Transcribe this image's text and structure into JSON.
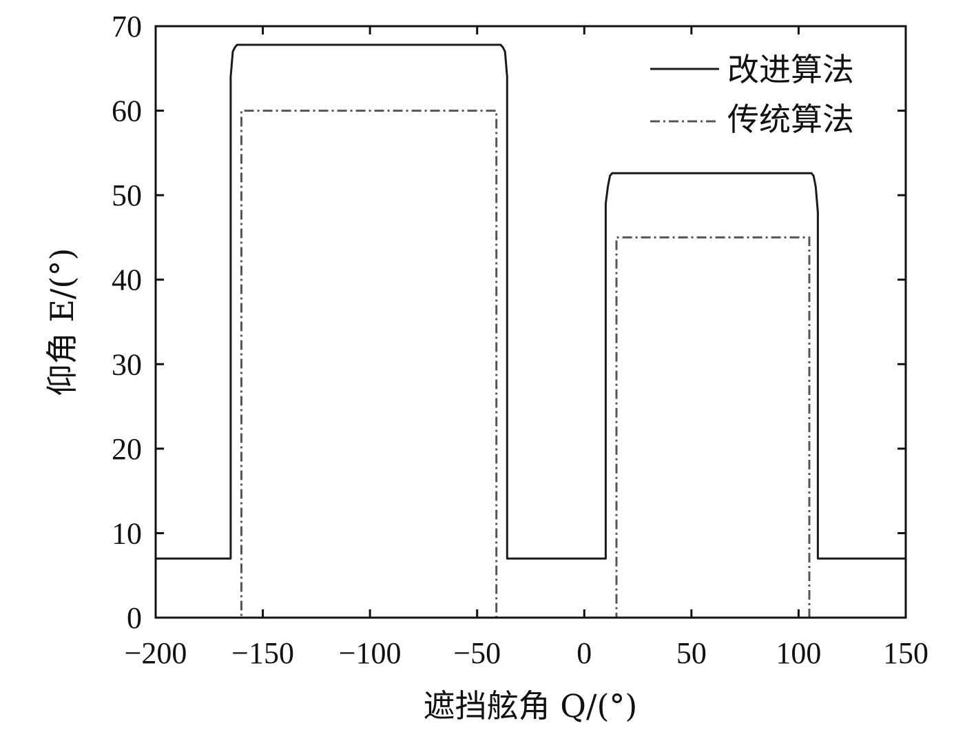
{
  "chart_data": {
    "type": "line",
    "title": "",
    "xlabel": "遮挡舷角 Q/(°)",
    "ylabel": "仰角 E/(°)",
    "xlim": [
      -200,
      150
    ],
    "ylim": [
      0,
      70
    ],
    "xticks": [
      -200,
      -150,
      -100,
      -50,
      0,
      50,
      100,
      150
    ],
    "yticks": [
      0,
      10,
      20,
      30,
      40,
      50,
      60,
      70
    ],
    "xtick_labels": [
      "−200",
      "−150",
      "−100",
      "−50",
      "0",
      "50",
      "100",
      "150"
    ],
    "ytick_labels": [
      "0",
      "10",
      "20",
      "30",
      "40",
      "50",
      "60",
      "70"
    ],
    "grid": false,
    "legend_position": "top-right",
    "series": [
      {
        "name": "改进算法",
        "style": "solid",
        "color": "#1a1a1a",
        "x": [
          -200,
          -165,
          -165,
          -164,
          -163,
          -162,
          -39,
          -38,
          -37,
          -36,
          -36,
          10,
          10,
          11,
          12,
          13,
          106,
          107,
          108,
          109,
          109,
          150
        ],
        "y": [
          7,
          7,
          64,
          67,
          67.5,
          67.8,
          67.8,
          67.5,
          67,
          64,
          7,
          7,
          49,
          51,
          52.3,
          52.6,
          52.6,
          52.3,
          51,
          48,
          7,
          7
        ]
      },
      {
        "name": "传统算法",
        "style": "dashdot",
        "color": "#555555",
        "x": [
          -200,
          -160,
          -160,
          -41,
          -41,
          15,
          15,
          105,
          105,
          150
        ],
        "y": [
          0,
          0,
          60,
          60,
          0,
          0,
          45,
          45,
          0,
          0
        ]
      }
    ]
  },
  "colors": {
    "axis": "#111111",
    "improved": "#1a1a1a",
    "traditional": "#555555"
  }
}
